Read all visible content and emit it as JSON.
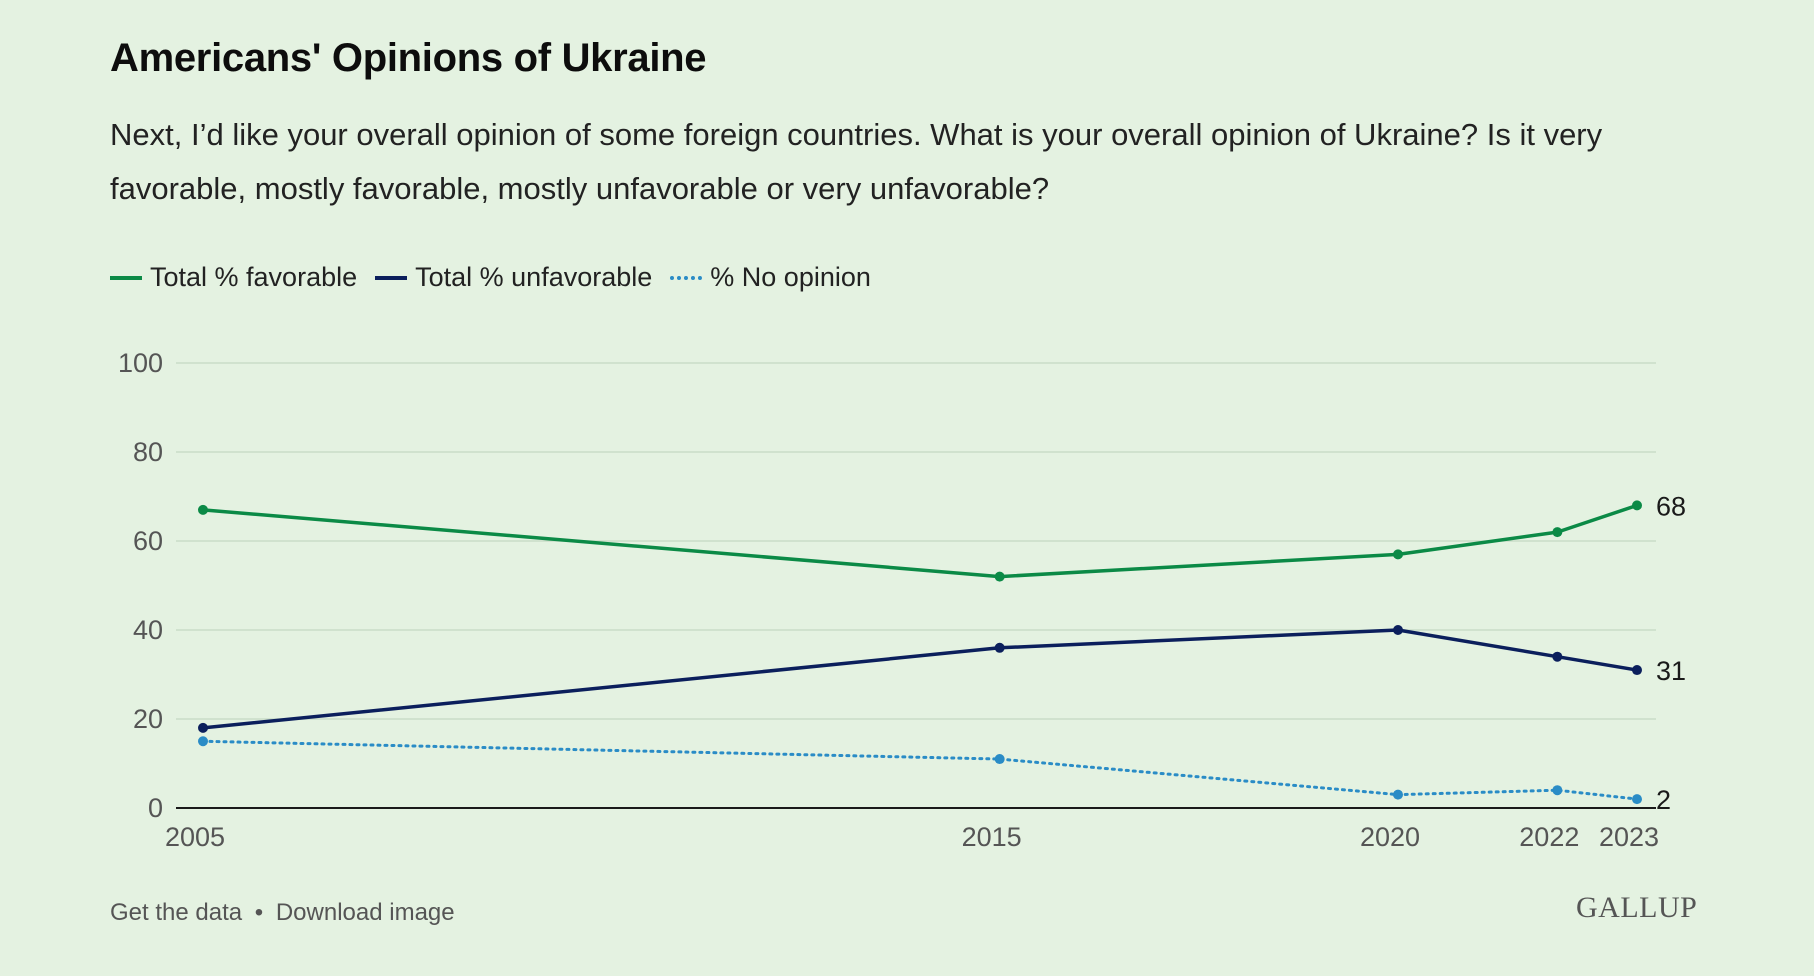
{
  "title": "Americans' Opinions of Ukraine",
  "subtitle": "Next, I’d like your overall opinion of some foreign countries. What is your overall opinion of Ukraine? Is it very favorable, mostly favorable, mostly unfavorable or very unfavorable?",
  "footer": {
    "get_data": "Get the data",
    "separator": "•",
    "download": "Download image"
  },
  "brand": "GALLUP",
  "colors": {
    "favorable": "#0b8a46",
    "unfavorable": "#0b1f5c",
    "no_opinion": "#2a8cc6",
    "grid": "#c9dcc7",
    "axis": "#1a1a1a",
    "tick": "#555555"
  },
  "chart_data": {
    "type": "line",
    "x": [
      2005,
      2015,
      2020,
      2022,
      2023
    ],
    "ylim": [
      0,
      100
    ],
    "yticks": [
      0,
      20,
      40,
      60,
      80,
      100
    ],
    "xticks": [
      "2005",
      "2015",
      "2020",
      "2022",
      "2023"
    ],
    "grid": true,
    "legend_position": "top-left",
    "series": [
      {
        "name": "Total % favorable",
        "values": [
          67,
          52,
          57,
          62,
          68
        ],
        "style": "solid",
        "end_label": "68"
      },
      {
        "name": "Total % unfavorable",
        "values": [
          18,
          36,
          40,
          34,
          31
        ],
        "style": "solid",
        "end_label": "31"
      },
      {
        "name": "% No opinion",
        "values": [
          15,
          11,
          3,
          4,
          2
        ],
        "style": "dotted",
        "end_label": "2"
      }
    ]
  }
}
